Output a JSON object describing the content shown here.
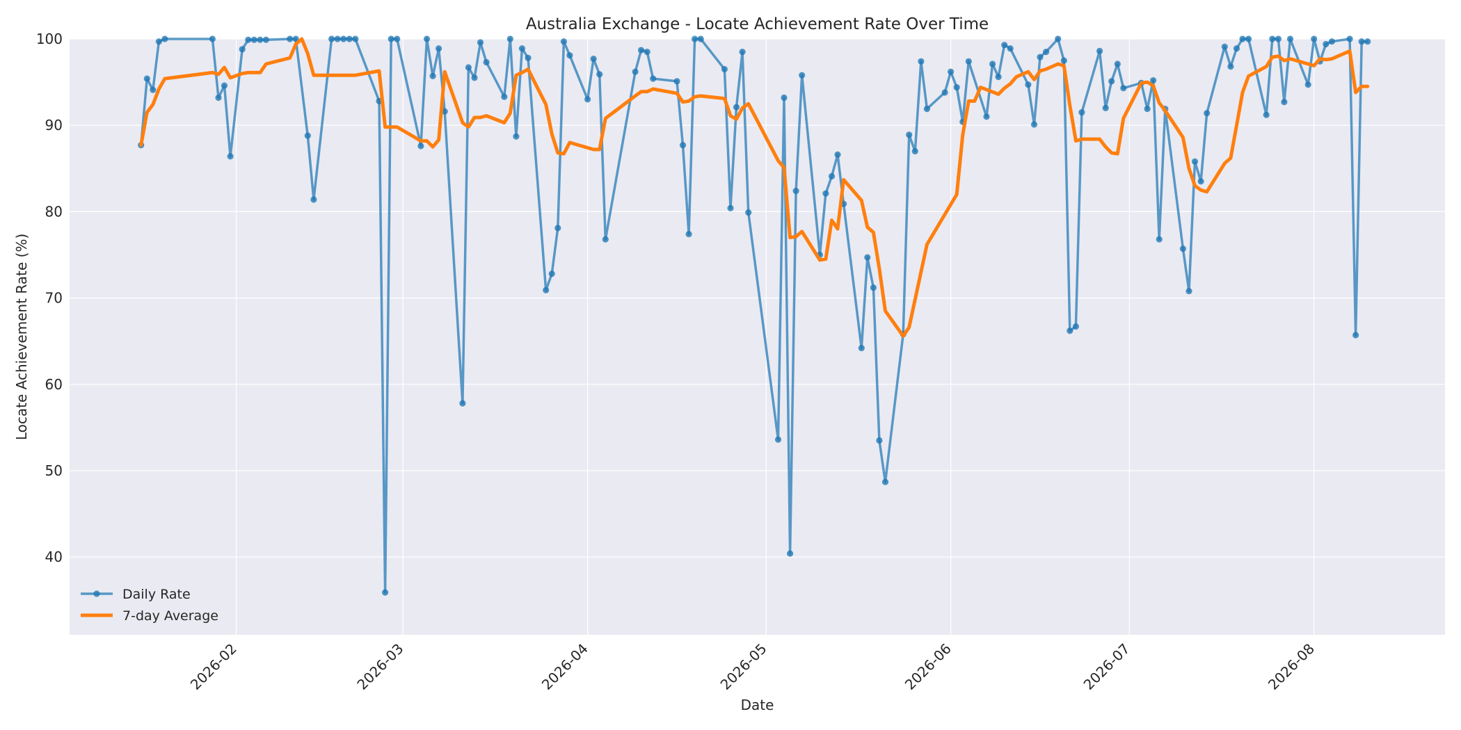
{
  "chart_data": {
    "type": "line",
    "title": "Australia Exchange - Locate Achievement Rate Over Time",
    "xlabel": "Date",
    "ylabel": "Locate Achievement Rate (%)",
    "xlim": [
      "2026-01-04",
      "2026-08-23"
    ],
    "ylim": [
      31,
      100
    ],
    "yticks": [
      40,
      50,
      60,
      70,
      80,
      90,
      100
    ],
    "xticks": [
      "2026-02-01",
      "2026-03-01",
      "2026-04-01",
      "2026-05-01",
      "2026-06-01",
      "2026-07-01",
      "2026-08-01"
    ],
    "xtick_labels": [
      "2026-02",
      "2026-03",
      "2026-04",
      "2026-05",
      "2026-06",
      "2026-07",
      "2026-08"
    ],
    "grid": true,
    "legend_position": "lower-left",
    "series": [
      {
        "name": "Daily Rate",
        "color": "#1f77b4",
        "style": "line-markers",
        "points": [
          [
            "2026-01-16",
            87.7
          ],
          [
            "2026-01-17",
            95.4
          ],
          [
            "2026-01-18",
            94.1
          ],
          [
            "2026-01-19",
            99.7
          ],
          [
            "2026-01-20",
            100.0
          ],
          [
            "2026-01-28",
            100.0
          ],
          [
            "2026-01-29",
            93.2
          ],
          [
            "2026-01-30",
            94.6
          ],
          [
            "2026-01-31",
            86.4
          ],
          [
            "2026-02-02",
            98.8
          ],
          [
            "2026-02-03",
            99.9
          ],
          [
            "2026-02-04",
            99.9
          ],
          [
            "2026-02-05",
            99.9
          ],
          [
            "2026-02-06",
            99.9
          ],
          [
            "2026-02-10",
            100.0
          ],
          [
            "2026-02-11",
            100.0
          ],
          [
            "2026-02-13",
            88.8
          ],
          [
            "2026-02-14",
            81.4
          ],
          [
            "2026-02-17",
            100.0
          ],
          [
            "2026-02-18",
            100.0
          ],
          [
            "2026-02-19",
            100.0
          ],
          [
            "2026-02-20",
            100.0
          ],
          [
            "2026-02-21",
            100.0
          ],
          [
            "2026-02-25",
            92.8
          ],
          [
            "2026-02-26",
            35.9
          ],
          [
            "2026-02-27",
            100.0
          ],
          [
            "2026-02-28",
            100.0
          ],
          [
            "2026-03-04",
            87.6
          ],
          [
            "2026-03-05",
            100.0
          ],
          [
            "2026-03-06",
            95.7
          ],
          [
            "2026-03-07",
            98.9
          ],
          [
            "2026-03-08",
            91.6
          ],
          [
            "2026-03-11",
            57.8
          ],
          [
            "2026-03-12",
            96.7
          ],
          [
            "2026-03-13",
            95.5
          ],
          [
            "2026-03-14",
            99.6
          ],
          [
            "2026-03-15",
            97.3
          ],
          [
            "2026-03-18",
            93.3
          ],
          [
            "2026-03-19",
            100.0
          ],
          [
            "2026-03-20",
            88.7
          ],
          [
            "2026-03-21",
            98.9
          ],
          [
            "2026-03-22",
            97.8
          ],
          [
            "2026-03-25",
            70.9
          ],
          [
            "2026-03-26",
            72.8
          ],
          [
            "2026-03-27",
            78.1
          ],
          [
            "2026-03-28",
            99.7
          ],
          [
            "2026-03-29",
            98.1
          ],
          [
            "2026-04-01",
            93.0
          ],
          [
            "2026-04-02",
            97.7
          ],
          [
            "2026-04-03",
            95.9
          ],
          [
            "2026-04-04",
            76.8
          ],
          [
            "2026-04-09",
            96.2
          ],
          [
            "2026-04-10",
            98.7
          ],
          [
            "2026-04-11",
            98.5
          ],
          [
            "2026-04-12",
            95.4
          ],
          [
            "2026-04-16",
            95.1
          ],
          [
            "2026-04-17",
            87.7
          ],
          [
            "2026-04-18",
            77.4
          ],
          [
            "2026-04-19",
            100.0
          ],
          [
            "2026-04-20",
            100.0
          ],
          [
            "2026-04-24",
            96.5
          ],
          [
            "2026-04-25",
            80.4
          ],
          [
            "2026-04-26",
            92.1
          ],
          [
            "2026-04-27",
            98.5
          ],
          [
            "2026-04-28",
            79.9
          ],
          [
            "2026-05-03",
            53.6
          ],
          [
            "2026-05-04",
            93.2
          ],
          [
            "2026-05-05",
            40.4
          ],
          [
            "2026-05-06",
            82.4
          ],
          [
            "2026-05-07",
            95.8
          ],
          [
            "2026-05-10",
            75.0
          ],
          [
            "2026-05-11",
            82.1
          ],
          [
            "2026-05-12",
            84.1
          ],
          [
            "2026-05-13",
            86.6
          ],
          [
            "2026-05-14",
            80.9
          ],
          [
            "2026-05-17",
            64.2
          ],
          [
            "2026-05-18",
            74.7
          ],
          [
            "2026-05-19",
            71.2
          ],
          [
            "2026-05-20",
            53.5
          ],
          [
            "2026-05-21",
            48.7
          ],
          [
            "2026-05-24",
            65.8
          ],
          [
            "2026-05-25",
            88.9
          ],
          [
            "2026-05-26",
            87.0
          ],
          [
            "2026-05-27",
            97.4
          ],
          [
            "2026-05-28",
            91.9
          ],
          [
            "2026-05-31",
            93.8
          ],
          [
            "2026-06-01",
            96.2
          ],
          [
            "2026-06-02",
            94.4
          ],
          [
            "2026-06-03",
            90.4
          ],
          [
            "2026-06-04",
            97.4
          ],
          [
            "2026-06-07",
            91.0
          ],
          [
            "2026-06-08",
            97.1
          ],
          [
            "2026-06-09",
            95.6
          ],
          [
            "2026-06-10",
            99.3
          ],
          [
            "2026-06-11",
            98.9
          ],
          [
            "2026-06-14",
            94.7
          ],
          [
            "2026-06-15",
            90.1
          ],
          [
            "2026-06-16",
            97.9
          ],
          [
            "2026-06-17",
            98.5
          ],
          [
            "2026-06-19",
            100.0
          ],
          [
            "2026-06-20",
            97.5
          ],
          [
            "2026-06-21",
            66.2
          ],
          [
            "2026-06-22",
            66.7
          ],
          [
            "2026-06-23",
            91.5
          ],
          [
            "2026-06-26",
            98.6
          ],
          [
            "2026-06-27",
            92.0
          ],
          [
            "2026-06-28",
            95.1
          ],
          [
            "2026-06-29",
            97.1
          ],
          [
            "2026-06-30",
            94.3
          ],
          [
            "2026-07-03",
            94.9
          ],
          [
            "2026-07-04",
            91.9
          ],
          [
            "2026-07-05",
            95.2
          ],
          [
            "2026-07-06",
            76.8
          ],
          [
            "2026-07-07",
            91.9
          ],
          [
            "2026-07-10",
            75.7
          ],
          [
            "2026-07-11",
            70.8
          ],
          [
            "2026-07-12",
            85.8
          ],
          [
            "2026-07-13",
            83.5
          ],
          [
            "2026-07-14",
            91.4
          ],
          [
            "2026-07-17",
            99.1
          ],
          [
            "2026-07-18",
            96.8
          ],
          [
            "2026-07-19",
            98.9
          ],
          [
            "2026-07-20",
            100.0
          ],
          [
            "2026-07-21",
            100.0
          ],
          [
            "2026-07-24",
            91.2
          ],
          [
            "2026-07-25",
            100.0
          ],
          [
            "2026-07-26",
            100.0
          ],
          [
            "2026-07-27",
            92.7
          ],
          [
            "2026-07-28",
            100.0
          ],
          [
            "2026-07-31",
            94.7
          ],
          [
            "2026-08-01",
            100.0
          ],
          [
            "2026-08-02",
            97.4
          ],
          [
            "2026-08-03",
            99.4
          ],
          [
            "2026-08-04",
            99.7
          ],
          [
            "2026-08-07",
            100.0
          ],
          [
            "2026-08-08",
            65.7
          ],
          [
            "2026-08-09",
            99.7
          ],
          [
            "2026-08-10",
            99.7
          ]
        ]
      },
      {
        "name": "7-day Average",
        "color": "#ff7f0e",
        "style": "line",
        "points": [
          [
            "2026-01-16",
            87.7
          ],
          [
            "2026-01-17",
            91.5
          ],
          [
            "2026-01-18",
            92.4
          ],
          [
            "2026-01-19",
            94.2
          ],
          [
            "2026-01-20",
            95.4
          ],
          [
            "2026-01-28",
            96.1
          ],
          [
            "2026-01-29",
            95.9
          ],
          [
            "2026-01-30",
            96.7
          ],
          [
            "2026-01-31",
            95.5
          ],
          [
            "2026-02-02",
            96.0
          ],
          [
            "2026-02-03",
            96.1
          ],
          [
            "2026-02-04",
            96.1
          ],
          [
            "2026-02-05",
            96.1
          ],
          [
            "2026-02-06",
            97.1
          ],
          [
            "2026-02-10",
            97.8
          ],
          [
            "2026-02-11",
            99.4
          ],
          [
            "2026-02-12",
            100.0
          ],
          [
            "2026-02-13",
            98.3
          ],
          [
            "2026-02-14",
            95.8
          ],
          [
            "2026-02-17",
            95.8
          ],
          [
            "2026-02-18",
            95.8
          ],
          [
            "2026-02-19",
            95.8
          ],
          [
            "2026-02-20",
            95.8
          ],
          [
            "2026-02-21",
            95.8
          ],
          [
            "2026-02-25",
            96.3
          ],
          [
            "2026-02-26",
            89.8
          ],
          [
            "2026-02-27",
            89.8
          ],
          [
            "2026-02-28",
            89.8
          ],
          [
            "2026-03-04",
            88.2
          ],
          [
            "2026-03-05",
            88.2
          ],
          [
            "2026-03-06",
            87.5
          ],
          [
            "2026-03-07",
            88.3
          ],
          [
            "2026-03-08",
            96.2
          ],
          [
            "2026-03-11",
            90.3
          ],
          [
            "2026-03-12",
            89.8
          ],
          [
            "2026-03-13",
            90.9
          ],
          [
            "2026-03-14",
            90.9
          ],
          [
            "2026-03-15",
            91.1
          ],
          [
            "2026-03-18",
            90.3
          ],
          [
            "2026-03-19",
            91.4
          ],
          [
            "2026-03-20",
            95.8
          ],
          [
            "2026-03-21",
            96.1
          ],
          [
            "2026-03-22",
            96.5
          ],
          [
            "2026-03-25",
            92.4
          ],
          [
            "2026-03-26",
            89.0
          ],
          [
            "2026-03-27",
            86.8
          ],
          [
            "2026-03-28",
            86.7
          ],
          [
            "2026-03-29",
            88.0
          ],
          [
            "2026-04-01",
            87.4
          ],
          [
            "2026-04-02",
            87.2
          ],
          [
            "2026-04-03",
            87.2
          ],
          [
            "2026-04-04",
            90.8
          ],
          [
            "2026-04-09",
            93.4
          ],
          [
            "2026-04-10",
            93.9
          ],
          [
            "2026-04-11",
            93.9
          ],
          [
            "2026-04-12",
            94.2
          ],
          [
            "2026-04-16",
            93.7
          ],
          [
            "2026-04-17",
            92.7
          ],
          [
            "2026-04-18",
            92.8
          ],
          [
            "2026-04-19",
            93.3
          ],
          [
            "2026-04-20",
            93.4
          ],
          [
            "2026-04-24",
            93.1
          ],
          [
            "2026-04-25",
            91.1
          ],
          [
            "2026-04-26",
            90.7
          ],
          [
            "2026-04-27",
            92.0
          ],
          [
            "2026-04-28",
            92.5
          ],
          [
            "2026-05-03",
            85.9
          ],
          [
            "2026-05-04",
            85.1
          ],
          [
            "2026-05-05",
            77.0
          ],
          [
            "2026-05-06",
            77.1
          ],
          [
            "2026-05-07",
            77.7
          ],
          [
            "2026-05-10",
            74.4
          ],
          [
            "2026-05-11",
            74.5
          ],
          [
            "2026-05-12",
            79.0
          ],
          [
            "2026-05-13",
            78.0
          ],
          [
            "2026-05-14",
            83.7
          ],
          [
            "2026-05-17",
            81.3
          ],
          [
            "2026-05-18",
            78.2
          ],
          [
            "2026-05-19",
            77.6
          ],
          [
            "2026-05-20",
            73.4
          ],
          [
            "2026-05-21",
            68.5
          ],
          [
            "2026-05-24",
            65.6
          ],
          [
            "2026-05-25",
            66.6
          ],
          [
            "2026-05-28",
            76.2
          ],
          [
            "2026-06-02",
            82.0
          ],
          [
            "2026-06-03",
            88.9
          ],
          [
            "2026-06-04",
            92.8
          ],
          [
            "2026-06-05",
            92.8
          ],
          [
            "2026-06-06",
            94.4
          ],
          [
            "2026-06-09",
            93.6
          ],
          [
            "2026-06-10",
            94.3
          ],
          [
            "2026-06-11",
            94.8
          ],
          [
            "2026-06-12",
            95.6
          ],
          [
            "2026-06-14",
            96.2
          ],
          [
            "2026-06-15",
            95.3
          ],
          [
            "2026-06-16",
            96.3
          ],
          [
            "2026-06-17",
            96.5
          ],
          [
            "2026-06-19",
            97.1
          ],
          [
            "2026-06-20",
            96.9
          ],
          [
            "2026-06-21",
            92.3
          ],
          [
            "2026-06-22",
            88.2
          ],
          [
            "2026-06-23",
            88.4
          ],
          [
            "2026-06-26",
            88.4
          ],
          [
            "2026-06-27",
            87.5
          ],
          [
            "2026-06-28",
            86.8
          ],
          [
            "2026-06-29",
            86.7
          ],
          [
            "2026-06-30",
            90.8
          ],
          [
            "2026-07-03",
            94.9
          ],
          [
            "2026-07-04",
            95.0
          ],
          [
            "2026-07-05",
            94.6
          ],
          [
            "2026-07-06",
            92.6
          ],
          [
            "2026-07-07",
            91.7
          ],
          [
            "2026-07-10",
            88.6
          ],
          [
            "2026-07-11",
            85.0
          ],
          [
            "2026-07-12",
            83.0
          ],
          [
            "2026-07-13",
            82.5
          ],
          [
            "2026-07-14",
            82.3
          ],
          [
            "2026-07-17",
            85.6
          ],
          [
            "2026-07-18",
            86.2
          ],
          [
            "2026-07-19",
            90.0
          ],
          [
            "2026-07-20",
            93.8
          ],
          [
            "2026-07-21",
            95.7
          ],
          [
            "2026-07-24",
            96.8
          ],
          [
            "2026-07-25",
            97.9
          ],
          [
            "2026-07-26",
            98.0
          ],
          [
            "2026-07-27",
            97.5
          ],
          [
            "2026-07-28",
            97.7
          ],
          [
            "2026-07-31",
            97.1
          ],
          [
            "2026-08-01",
            96.9
          ],
          [
            "2026-08-02",
            97.7
          ],
          [
            "2026-08-03",
            97.6
          ],
          [
            "2026-08-04",
            97.7
          ],
          [
            "2026-08-07",
            98.6
          ],
          [
            "2026-08-08",
            93.8
          ],
          [
            "2026-08-09",
            94.5
          ],
          [
            "2026-08-10",
            94.5
          ]
        ]
      }
    ]
  }
}
